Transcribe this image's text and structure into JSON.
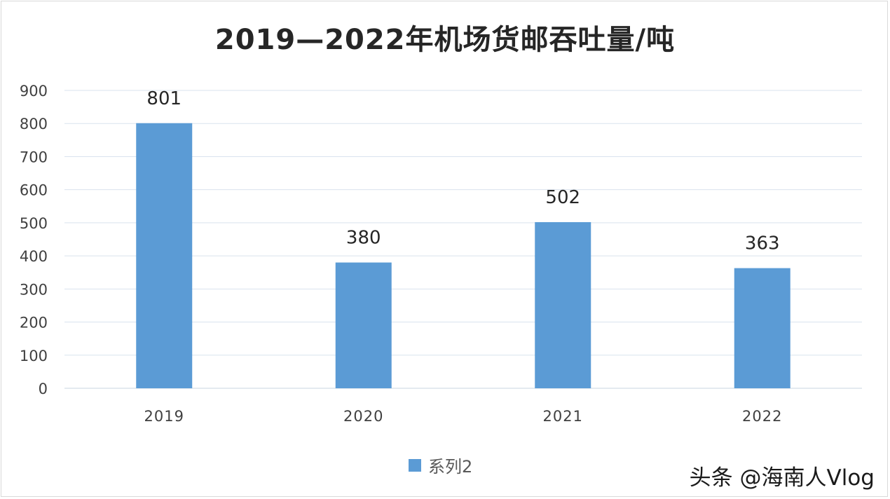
{
  "chart_data": {
    "type": "bar",
    "title": "2019—2022年机场货邮吞吐量/吨",
    "xlabel": "",
    "ylabel": "",
    "categories": [
      "2019",
      "2020",
      "2021",
      "2022"
    ],
    "series": [
      {
        "name": "系列2",
        "values": [
          801,
          380,
          502,
          363
        ],
        "color": "#5b9bd5"
      }
    ],
    "ylim": [
      0,
      900
    ],
    "yticks": [
      0,
      100,
      200,
      300,
      400,
      500,
      600,
      700,
      800,
      900
    ],
    "data_labels": [
      "801",
      "380",
      "502",
      "363"
    ],
    "grid": true,
    "legend_position": "bottom"
  },
  "watermark": "头条 @海南人Vlog",
  "colors": {
    "bar": "#5b9bd5",
    "grid": "#d9e3ee",
    "axis_text": "#404040"
  }
}
